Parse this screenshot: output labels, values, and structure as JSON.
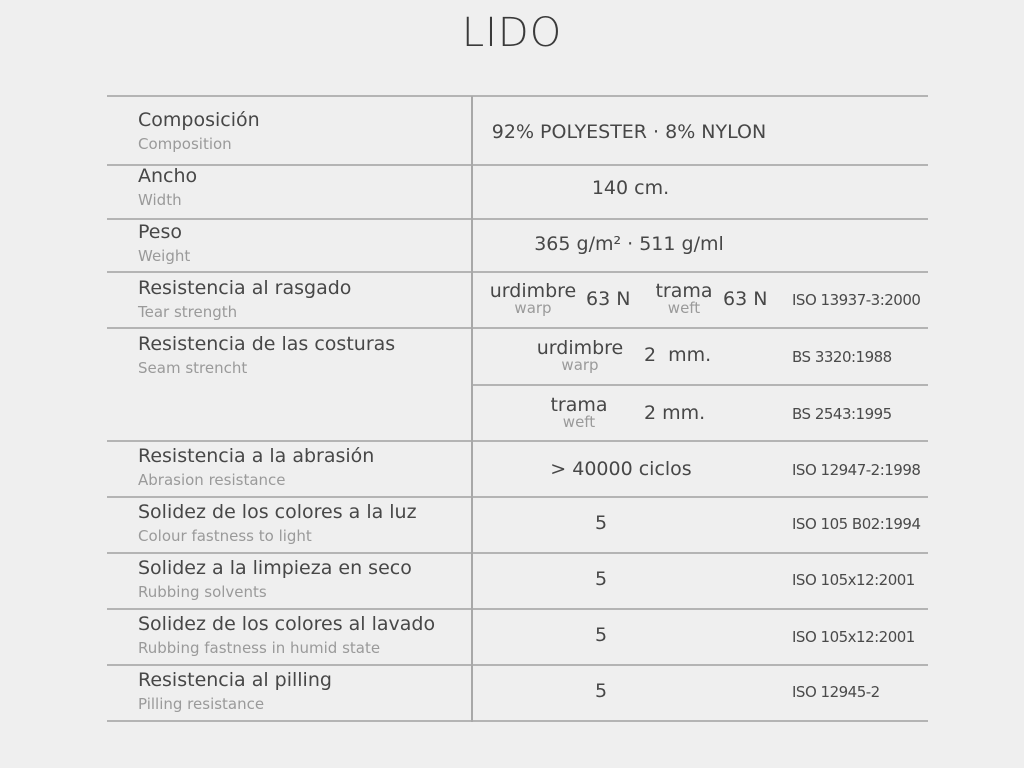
{
  "title": "LIDO",
  "rows": [
    {
      "label": "Composición",
      "sublabel": "Composition",
      "value": "92% POLYESTER · 8% NYLON"
    },
    {
      "label": "Ancho",
      "sublabel": "Width",
      "value": "140 cm."
    },
    {
      "label": "Peso",
      "sublabel": "Weight",
      "value": "365 g/m²  ·  511 g/ml"
    },
    {
      "label": "Resistencia al rasgado",
      "sublabel": "Tear strength",
      "warp_label": "urdimbre",
      "warp_sub": "warp",
      "warp_value": "63 N",
      "weft_label": "trama",
      "weft_sub": "weft",
      "weft_value": "63 N",
      "standard": "ISO 13937-3:2000"
    },
    {
      "label": "Resistencia de las costuras",
      "sublabel": "Seam strencht",
      "warp_label": "urdimbre",
      "warp_sub": "warp",
      "warp_value": "2  mm.",
      "warp_standard": "BS 3320:1988",
      "weft_label": "trama",
      "weft_sub": "weft",
      "weft_value": "2 mm.",
      "weft_standard": "BS 2543:1995"
    },
    {
      "label": "Resistencia a la abrasión",
      "sublabel": "Abrasion resistance",
      "value": "> 40000 ciclos",
      "standard": "ISO 12947-2:1998"
    },
    {
      "label": "Solidez de los colores a la luz",
      "sublabel": "Colour fastness to light",
      "value": "5",
      "standard": "ISO 105 B02:1994"
    },
    {
      "label": "Solidez a la limpieza en seco",
      "sublabel": "Rubbing solvents",
      "value": "5",
      "standard": "ISO 105x12:2001"
    },
    {
      "label": "Solidez de los colores al lavado",
      "sublabel": "Rubbing fastness in humid state",
      "value": "5",
      "standard": "ISO 105x12:2001"
    },
    {
      "label": "Resistencia al pilling",
      "sublabel": "Pilling resistance",
      "value": "5",
      "standard": "ISO 12945-2"
    }
  ]
}
